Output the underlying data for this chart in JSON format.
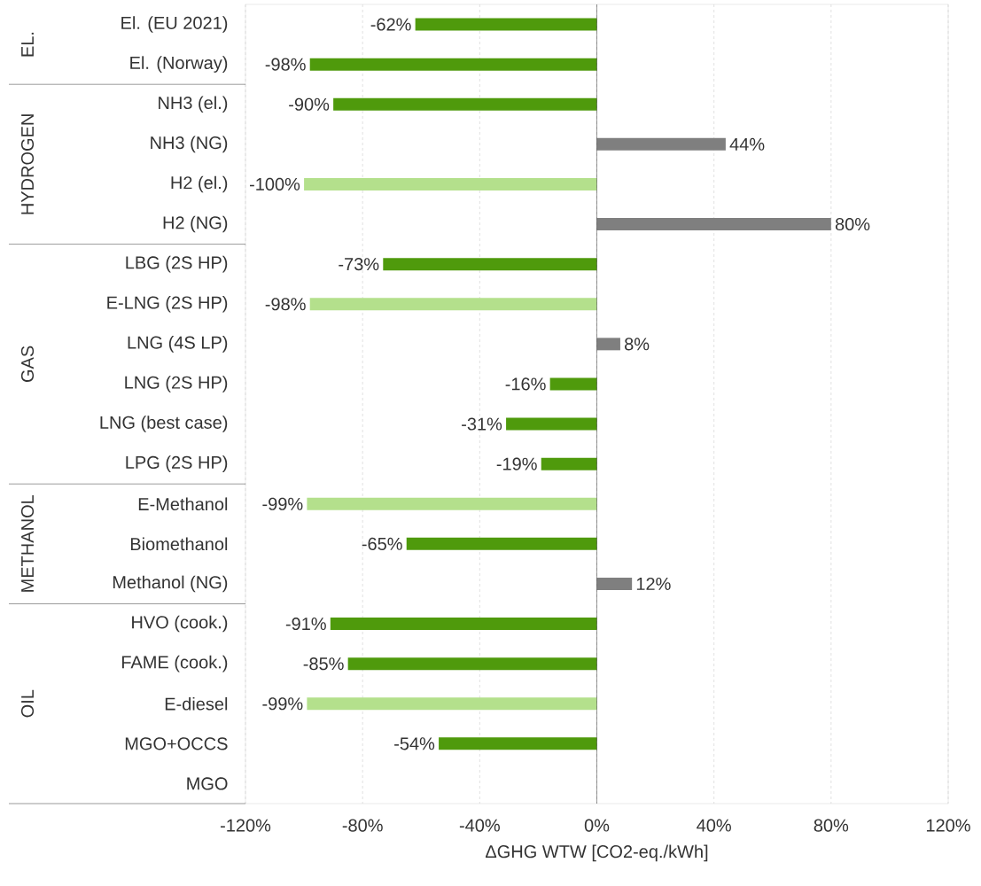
{
  "chart_data": {
    "type": "bar",
    "orientation": "horizontal",
    "xlabel": "ΔGHG WTW [CO2-eq./kWh]",
    "categories": [
      "El. (EU 2021)",
      "El. (Norway)",
      "NH3 (el.)",
      "NH3 (NG)",
      "H2 (el.)",
      "H2 (NG)",
      "LBG (2S HP)",
      "E-LNG (2S HP)",
      "LNG (4S LP)",
      "LNG (2S HP)",
      "LNG (best case)",
      "LPG (2S HP)",
      "E-Methanol",
      "Biomethanol",
      "Methanol (NG)",
      "HVO (cook.)",
      "FAME (cook.)",
      "E-diesel",
      "MGO+OCCS",
      "MGO"
    ],
    "values": [
      -62,
      -98,
      -90,
      44,
      -100,
      80,
      -73,
      -98,
      8,
      -16,
      -31,
      -19,
      -99,
      -65,
      12,
      -91,
      -85,
      -99,
      -54,
      0
    ],
    "value_labels": [
      "-62%",
      "-98%",
      "-90%",
      "44%",
      "-100%",
      "80%",
      "-73%",
      "-98%",
      "8%",
      "-16%",
      "-31%",
      "-19%",
      "-99%",
      "-65%",
      "12%",
      "-91%",
      "-85%",
      "-99%",
      "-54%",
      null
    ],
    "colors": [
      "#4f9a0c",
      "#4f9a0c",
      "#4f9a0c",
      "#7f7f7f",
      "#b4e08c",
      "#7f7f7f",
      "#4f9a0c",
      "#b4e08c",
      "#7f7f7f",
      "#4f9a0c",
      "#4f9a0c",
      "#4f9a0c",
      "#b4e08c",
      "#4f9a0c",
      "#7f7f7f",
      "#4f9a0c",
      "#4f9a0c",
      "#b4e08c",
      "#4f9a0c",
      "#4f9a0c"
    ],
    "xlim": [
      -120,
      120
    ],
    "xticks": [
      {
        "value": -120,
        "label": "-120%"
      },
      {
        "value": -80,
        "label": "-80%"
      },
      {
        "value": -40,
        "label": "-40%"
      },
      {
        "value": 0,
        "label": "0%"
      },
      {
        "value": 40,
        "label": "40%"
      },
      {
        "value": 80,
        "label": "80%"
      },
      {
        "value": 120,
        "label": "120%"
      }
    ],
    "grid": "x",
    "annotations": [
      "EL.",
      "HYDROGEN",
      "GAS",
      "METHANOL",
      "OIL"
    ]
  }
}
